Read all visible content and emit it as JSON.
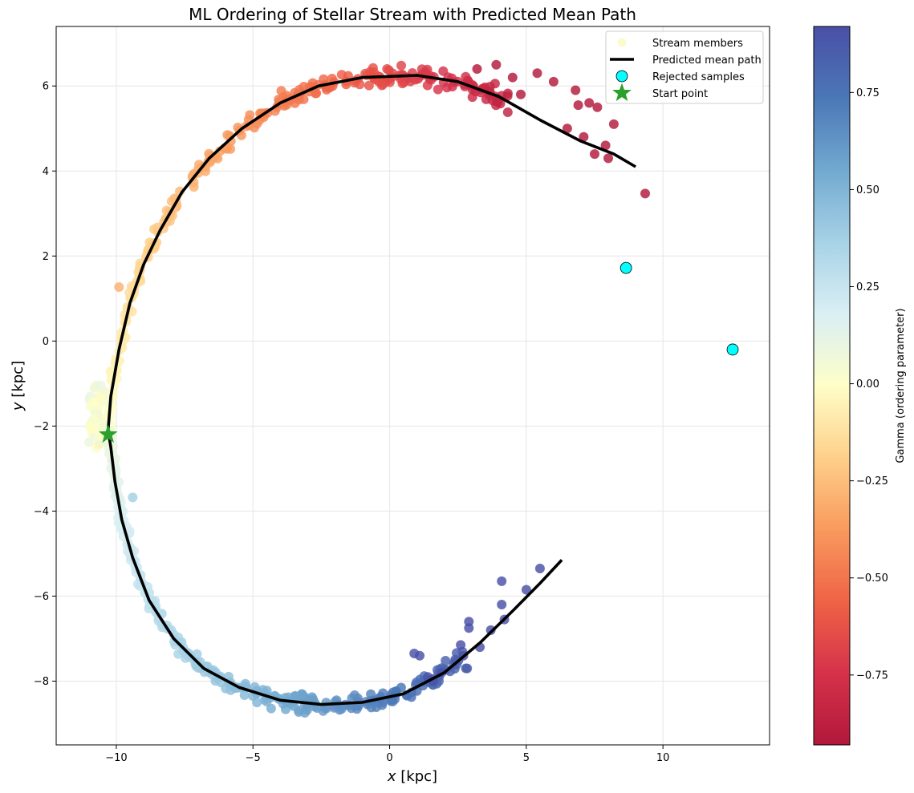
{
  "chart_data": {
    "type": "scatter",
    "title": "ML Ordering of Stellar Stream with Predicted Mean Path",
    "xlabel_var": "x",
    "xlabel_unit": " [kpc]",
    "ylabel_var": "y",
    "ylabel_unit": " [kpc]",
    "xlim": [
      -12.2,
      13.9
    ],
    "ylim": [
      -9.5,
      7.4
    ],
    "xticks": [
      -10,
      -5,
      0,
      5,
      10
    ],
    "yticks": [
      -8,
      -6,
      -4,
      -2,
      0,
      2,
      4,
      6
    ],
    "grid": true,
    "legend_position": "top-right",
    "legend": [
      {
        "label": "Stream members",
        "marker": "circle"
      },
      {
        "label": "Predicted mean path",
        "marker": "line"
      },
      {
        "label": "Rejected samples",
        "marker": "circle-edge"
      },
      {
        "label": "Start point",
        "marker": "star"
      }
    ],
    "colorbar": {
      "label": "Gamma (ordering parameter)",
      "range": [
        -0.93,
        0.92
      ],
      "ticks": [
        -0.75,
        -0.5,
        -0.25,
        0.0,
        0.25,
        0.5,
        0.75
      ],
      "tick_labels": [
        "−0.75",
        "−0.50",
        "−0.25",
        "0.00",
        "0.25",
        "0.50",
        "0.75"
      ],
      "colormap": "RdYlBu"
    },
    "mean_path": [
      [
        -10.3,
        -2.1
      ],
      [
        -10.2,
        -1.3
      ],
      [
        -9.9,
        -0.2
      ],
      [
        -9.5,
        0.9
      ],
      [
        -9.0,
        1.8
      ],
      [
        -8.4,
        2.6
      ],
      [
        -7.6,
        3.5
      ],
      [
        -6.6,
        4.3
      ],
      [
        -5.4,
        5.0
      ],
      [
        -4.0,
        5.6
      ],
      [
        -2.6,
        6.0
      ],
      [
        -1.0,
        6.2
      ],
      [
        1.0,
        6.25
      ],
      [
        2.5,
        6.1
      ],
      [
        4.0,
        5.75
      ],
      [
        5.5,
        5.2
      ],
      [
        7.0,
        4.7
      ],
      [
        8.2,
        4.4
      ],
      [
        9.0,
        4.1
      ],
      null,
      [
        -10.3,
        -2.1
      ],
      [
        -10.2,
        -2.5
      ],
      [
        -10.05,
        -3.3
      ],
      [
        -9.8,
        -4.2
      ],
      [
        -9.4,
        -5.1
      ],
      [
        -8.8,
        -6.1
      ],
      [
        -7.9,
        -7.0
      ],
      [
        -6.8,
        -7.7
      ],
      [
        -5.5,
        -8.15
      ],
      [
        -4.0,
        -8.45
      ],
      [
        -2.5,
        -8.55
      ],
      [
        -1.0,
        -8.5
      ],
      [
        0.5,
        -8.3
      ],
      [
        2.0,
        -7.8
      ],
      [
        3.3,
        -7.1
      ],
      [
        4.5,
        -6.35
      ],
      [
        5.5,
        -5.7
      ],
      [
        6.3,
        -5.15
      ]
    ],
    "rejected_samples": [
      [
        8.65,
        1.72
      ],
      [
        12.55,
        -0.2
      ]
    ],
    "start_point": [
      -10.3,
      -2.2
    ],
    "arm_upper": {
      "angle_start": -2.5,
      "angle_end": 83.0,
      "gamma_start": 0.02,
      "gamma_end": -0.93,
      "n_points": 320,
      "dense_scatter": 0.12,
      "tail_points": [
        [
          5.4,
          6.3
        ],
        [
          6.0,
          6.1
        ],
        [
          6.8,
          5.9
        ],
        [
          7.3,
          5.6
        ],
        [
          7.6,
          5.5
        ],
        [
          8.2,
          5.1
        ],
        [
          7.9,
          4.6
        ],
        [
          7.5,
          4.4
        ],
        [
          8.0,
          4.3
        ],
        [
          9.35,
          3.47
        ],
        [
          6.5,
          5.0
        ],
        [
          7.1,
          4.8
        ],
        [
          4.5,
          6.2
        ],
        [
          3.9,
          6.5
        ],
        [
          4.8,
          5.8
        ],
        [
          3.2,
          6.4
        ],
        [
          6.9,
          5.55
        ]
      ]
    },
    "arm_lower": {
      "angle_start": 2.5,
      "angle_end": 98.0,
      "gamma_start": 0.08,
      "gamma_end": 0.92,
      "n_points": 320,
      "dense_scatter": 0.12,
      "tail_points": [
        [
          4.1,
          -5.65
        ],
        [
          5.5,
          -5.35
        ],
        [
          5.0,
          -5.85
        ],
        [
          4.1,
          -6.2
        ],
        [
          4.2,
          -6.55
        ],
        [
          2.9,
          -6.6
        ],
        [
          2.9,
          -6.75
        ],
        [
          3.7,
          -6.8
        ],
        [
          2.6,
          -7.15
        ],
        [
          3.3,
          -7.2
        ],
        [
          1.1,
          -7.4
        ],
        [
          1.6,
          -8.0
        ],
        [
          1.4,
          -7.9
        ],
        [
          0.9,
          -7.35
        ],
        [
          2.7,
          -7.4
        ],
        [
          1.9,
          -7.8
        ]
      ]
    },
    "outlier_points": [
      [
        -9.9,
        1.27
      ],
      [
        -9.4,
        -3.68
      ]
    ]
  }
}
